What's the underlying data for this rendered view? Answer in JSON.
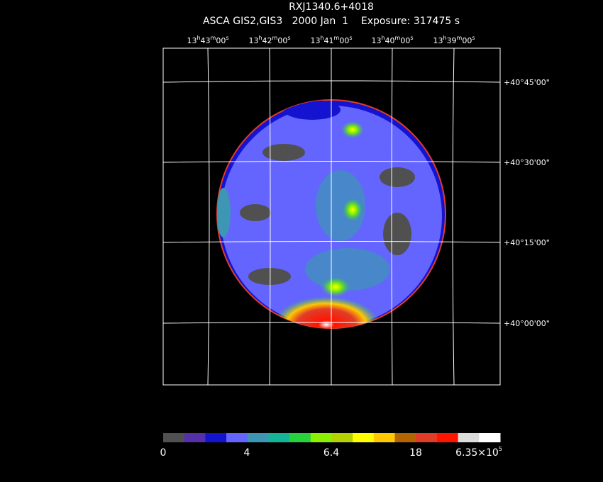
{
  "header": {
    "title": "RXJ1340.6+4018",
    "subtitle": "ASCA GIS2,GIS3   2000 Jan  1    Exposure: 317475 s"
  },
  "ra_labels": [
    [
      "13",
      "h",
      "43",
      "m",
      "00",
      "s"
    ],
    [
      "13",
      "h",
      "42",
      "m",
      "00",
      "s"
    ],
    [
      "13",
      "h",
      "41",
      "m",
      "00",
      "s"
    ],
    [
      "13",
      "h",
      "40",
      "m",
      "00",
      "s"
    ],
    [
      "13",
      "h",
      "39",
      "m",
      "00",
      "s"
    ]
  ],
  "dec_labels": [
    "+40°45'00\"",
    "+40°30'00\"",
    "+40°15'00\"",
    "+40°00'00\""
  ],
  "colorbar": {
    "colors": [
      "#505050",
      "#5530a8",
      "#1414d0",
      "#6464ff",
      "#3c96b4",
      "#14b496",
      "#28d23c",
      "#8cf000",
      "#b4d200",
      "#ffff00",
      "#ffc800",
      "#b46400",
      "#e13c28",
      "#ff1400",
      "#dcdcdc",
      "#ffffff"
    ],
    "labels": [
      "0",
      "4",
      "6.4",
      "18"
    ],
    "last_label": [
      "6.35×10",
      "5"
    ]
  }
}
